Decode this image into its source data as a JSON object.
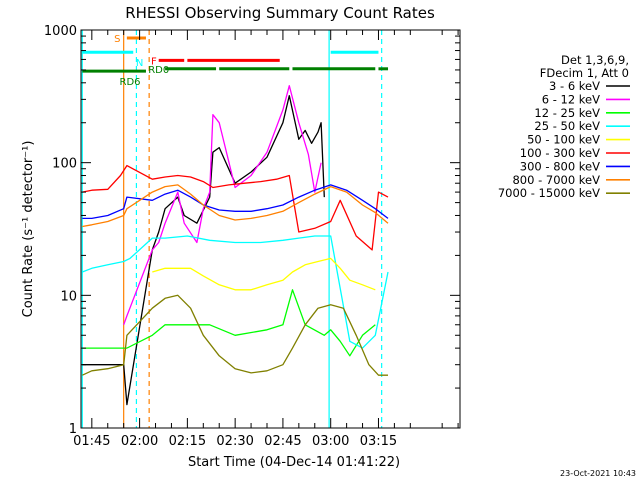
{
  "chart_data": {
    "type": "line",
    "title": "RHESSI Observing Summary Count Rates",
    "xlabel": "Start Time (04-Dec-14 01:41:22)",
    "ylabel": "Count Rate (s⁻¹ detector⁻¹)",
    "y_scale": "log",
    "ylim": [
      1,
      1000
    ],
    "y_ticks": [
      {
        "value": 1,
        "label": "1"
      },
      {
        "value": 10,
        "label": "10"
      },
      {
        "value": 100,
        "label": "100"
      },
      {
        "value": 1000,
        "label": "1000"
      }
    ],
    "x_range_minutes": [
      -18.4,
      100.6
    ],
    "x_ticks": [
      {
        "minute": -15,
        "label": "01:45"
      },
      {
        "minute": 0,
        "label": "02:00"
      },
      {
        "minute": 15,
        "label": "02:15"
      },
      {
        "minute": 30,
        "label": "02:30"
      },
      {
        "minute": 45,
        "label": "02:45"
      },
      {
        "minute": 60,
        "label": "03:00"
      },
      {
        "minute": 75,
        "label": "03:15"
      }
    ],
    "legend": {
      "placement": "right",
      "header": [
        "Det 1,3,6,9,",
        "FDecim 1, Att 0"
      ]
    },
    "series": [
      {
        "name": "3 - 6 keV",
        "color": "#000000",
        "x": [
          -18,
          -5,
          -4,
          4,
          6,
          8,
          12,
          14,
          18,
          22,
          23,
          25,
          30,
          35,
          40,
          45,
          47,
          50,
          52,
          54,
          56,
          57,
          58
        ],
        "y": [
          3,
          3,
          1.5,
          22,
          30,
          45,
          55,
          40,
          35,
          55,
          120,
          130,
          70,
          85,
          110,
          200,
          320,
          150,
          175,
          140,
          170,
          200,
          55
        ]
      },
      {
        "name": "6 - 12 keV",
        "color": "#ff00ff",
        "x": [
          -5,
          -4,
          4,
          6,
          8,
          12,
          14,
          18,
          20,
          22,
          23,
          25,
          30,
          35,
          40,
          45,
          47,
          50,
          53,
          55,
          57
        ],
        "y": [
          6,
          7,
          22,
          25,
          35,
          60,
          35,
          25,
          45,
          60,
          230,
          200,
          65,
          80,
          120,
          250,
          380,
          200,
          115,
          60,
          100
        ]
      },
      {
        "name": "12 - 25 keV",
        "color": "#00ff00",
        "x": [
          -18,
          -5,
          -4,
          4,
          8,
          15,
          22,
          30,
          40,
          45,
          48,
          52,
          58,
          60,
          63,
          66,
          70,
          74
        ],
        "y": [
          4,
          4,
          4,
          5,
          6,
          6,
          6,
          5,
          5.5,
          6,
          11,
          6,
          5,
          5.5,
          4.5,
          3.5,
          5,
          6
        ]
      },
      {
        "name": "25 - 50 keV",
        "color": "#00ffff",
        "x": [
          -18,
          -15,
          -10,
          -5,
          -3,
          4,
          8,
          15,
          22,
          30,
          38,
          45,
          50,
          55,
          60,
          66,
          70,
          74,
          78
        ],
        "y": [
          15,
          16,
          17,
          18,
          19,
          27,
          27,
          28,
          26,
          25,
          25,
          26,
          27,
          28,
          28,
          4.5,
          4,
          5,
          15
        ]
      },
      {
        "name": "50 - 100 keV",
        "color": "#ffff00",
        "x": [
          4,
          8,
          12,
          16,
          20,
          25,
          30,
          35,
          40,
          45,
          48,
          52,
          56,
          60,
          63,
          66,
          70,
          74
        ],
        "y": [
          15,
          16,
          16,
          16,
          14,
          12,
          11,
          11,
          12,
          13,
          15,
          17,
          18,
          19,
          16,
          13,
          12,
          11
        ]
      },
      {
        "name": "100 - 300 keV",
        "color": "#ff0000",
        "x": [
          -18,
          -15,
          -10,
          -6,
          -4,
          4,
          8,
          12,
          16,
          20,
          23,
          28,
          33,
          38,
          43,
          47,
          50,
          55,
          60,
          63,
          68,
          73,
          75,
          78
        ],
        "y": [
          60,
          62,
          63,
          80,
          95,
          75,
          78,
          80,
          78,
          72,
          65,
          68,
          70,
          72,
          75,
          80,
          30,
          32,
          36,
          52,
          28,
          22,
          60,
          55
        ]
      },
      {
        "name": "300 - 800 keV",
        "color": "#0000ff",
        "x": [
          -18,
          -15,
          -10,
          -5,
          -4,
          4,
          8,
          12,
          16,
          20,
          25,
          30,
          35,
          40,
          45,
          50,
          55,
          60,
          65,
          70,
          74,
          78
        ],
        "y": [
          38,
          38,
          40,
          45,
          55,
          52,
          58,
          62,
          55,
          48,
          44,
          43,
          43,
          45,
          48,
          55,
          62,
          68,
          62,
          52,
          45,
          38
        ]
      },
      {
        "name": "800 - 7000 keV",
        "color": "#ff8000",
        "x": [
          -18,
          -15,
          -10,
          -5,
          -4,
          4,
          8,
          12,
          16,
          20,
          25,
          30,
          35,
          40,
          45,
          50,
          55,
          60,
          65,
          70,
          74,
          78
        ],
        "y": [
          33,
          34,
          36,
          40,
          45,
          60,
          66,
          68,
          58,
          48,
          40,
          37,
          38,
          40,
          43,
          50,
          58,
          66,
          60,
          48,
          42,
          35
        ]
      },
      {
        "name": "7000 - 15000 keV",
        "color": "#808000",
        "x": [
          -18,
          -15,
          -10,
          -5,
          -4,
          4,
          8,
          12,
          16,
          20,
          25,
          30,
          35,
          40,
          45,
          48,
          52,
          56,
          60,
          64,
          68,
          72,
          75,
          78
        ],
        "y": [
          2.5,
          2.7,
          2.8,
          3,
          5,
          8,
          9.5,
          10,
          8,
          5,
          3.5,
          2.8,
          2.6,
          2.7,
          3,
          4,
          6,
          8,
          8.5,
          8,
          5,
          3,
          2.5,
          2.5
        ]
      }
    ],
    "annotations": {
      "state_bars": [
        {
          "label": "S",
          "color": "#ff8000",
          "y": 870,
          "segments": [
            [
              -4,
              2
            ]
          ]
        },
        {
          "label": "N",
          "color": "#00ffff",
          "y": 680,
          "segments": [
            [
              -18,
              -2
            ],
            [
              60,
              75
            ]
          ]
        },
        {
          "label": "F",
          "color": "#ff0000",
          "y": 590,
          "segments": [
            [
              6,
              14
            ],
            [
              15,
              44
            ]
          ]
        },
        {
          "label": "RD0",
          "color": "#008000",
          "y": 510,
          "segments": [
            [
              8,
              24
            ],
            [
              25,
              47
            ],
            [
              48,
              74
            ],
            [
              75,
              78
            ]
          ]
        },
        {
          "label": "RD6",
          "color": "#008000",
          "y": 490,
          "segments": [
            [
              -18,
              2
            ]
          ]
        }
      ],
      "vlines": [
        {
          "minute": -18,
          "color": "#00ffff",
          "dash": false
        },
        {
          "minute": -5,
          "color": "#ff8000",
          "dash": false
        },
        {
          "minute": -1,
          "color": "#00ffff",
          "dash": true
        },
        {
          "minute": 3,
          "color": "#ff8000",
          "dash": true
        },
        {
          "minute": 59.5,
          "color": "#00ffff",
          "dash": false
        },
        {
          "minute": 76,
          "color": "#00ffff",
          "dash": true
        }
      ]
    },
    "footer_timestamp": "23-Oct-2021 10:43"
  }
}
